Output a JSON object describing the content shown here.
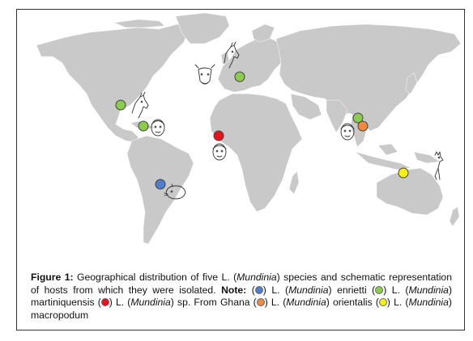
{
  "figure": {
    "caption": {
      "label": "Figure 1:",
      "text": "Geographical distribution of five L. (Mundinia) species and schematic representation of hosts from which they were isolated.",
      "note_label": "Note:",
      "legend": [
        {
          "name": "L. (Mundinia) enrietti",
          "color": "#4f7ecb"
        },
        {
          "name": "L. (Mundinia) martiniquensis",
          "color": "#8bcc4d"
        },
        {
          "name": "L. (Mundinia) sp. From Ghana",
          "color": "#e8121a"
        },
        {
          "name": "L. (Mundinia) orientalis",
          "color": "#ef8a3c"
        },
        {
          "name": "L. (Mundinia) macropodum",
          "color": "#f7ee12"
        }
      ]
    },
    "map_markers": [
      {
        "species": "L. (Mundinia) martiniquensis",
        "region": "Central Europe",
        "color": "#8bcc4d",
        "hosts": [
          "horse-icon",
          "cow-icon"
        ]
      },
      {
        "species": "L. (Mundinia) martiniquensis",
        "region": "Southeastern USA",
        "color": "#8bcc4d",
        "hosts": [
          "horse-icon"
        ]
      },
      {
        "species": "L. (Mundinia) martiniquensis",
        "region": "Martinique (Caribbean)",
        "color": "#8bcc4d",
        "hosts": [
          "human-face-icon"
        ]
      },
      {
        "species": "L. (Mundinia) sp. From Ghana",
        "region": "Ghana",
        "color": "#e8121a",
        "hosts": [
          "human-face-icon"
        ]
      },
      {
        "species": "L. (Mundinia) martiniquensis",
        "region": "Thailand",
        "color": "#8bcc4d",
        "hosts": [
          "human-face-icon"
        ]
      },
      {
        "species": "L. (Mundinia) orientalis",
        "region": "Thailand",
        "color": "#ef8a3c",
        "hosts": [
          "human-face-icon"
        ]
      },
      {
        "species": "L. (Mundinia) enrietti",
        "region": "Southern Brazil",
        "color": "#4f7ecb",
        "hosts": [
          "guinea-pig-icon"
        ]
      },
      {
        "species": "L. (Mundinia) macropodum",
        "region": "Northern Australia",
        "color": "#f7ee12",
        "hosts": [
          "kangaroo-icon"
        ]
      }
    ]
  }
}
